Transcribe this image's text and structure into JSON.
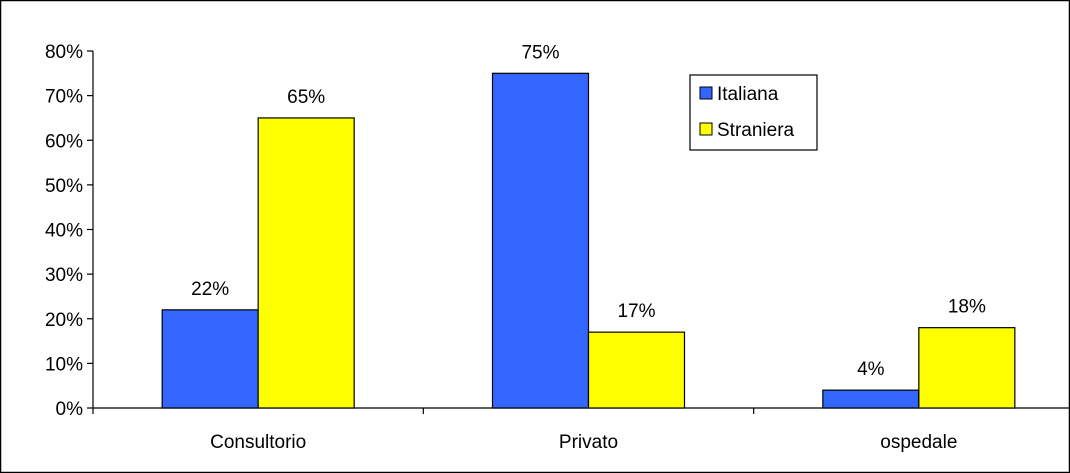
{
  "chart_data": {
    "type": "bar",
    "categories": [
      "Consultorio",
      "Privato",
      "ospedale"
    ],
    "series": [
      {
        "name": "Italiana",
        "values": [
          22,
          75,
          4
        ],
        "labels": [
          "22%",
          "75%",
          "4%"
        ],
        "color": "#3366ff"
      },
      {
        "name": "Straniera",
        "values": [
          65,
          17,
          18
        ],
        "labels": [
          "65%",
          "17%",
          "18%"
        ],
        "color": "#ffff00"
      }
    ],
    "ylim": [
      0,
      80
    ],
    "yticks": [
      0,
      10,
      20,
      30,
      40,
      50,
      60,
      70,
      80
    ],
    "ytick_labels": [
      "0%",
      "10%",
      "20%",
      "30%",
      "40%",
      "50%",
      "60%",
      "70%",
      "80%"
    ],
    "grid": false,
    "legend_position": "top-right",
    "title": "",
    "xlabel": "",
    "ylabel": ""
  }
}
